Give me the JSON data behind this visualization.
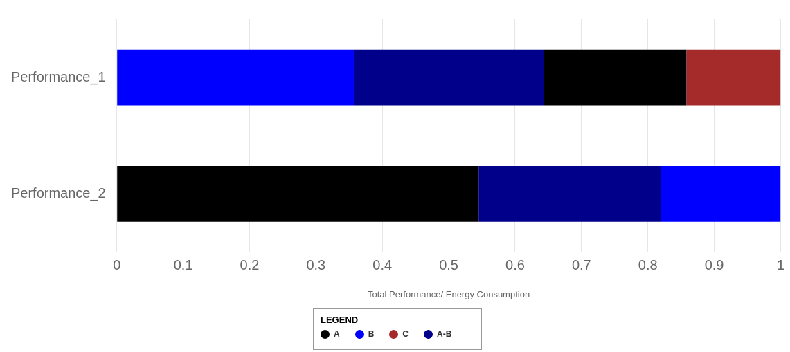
{
  "chart_data": {
    "type": "bar",
    "orientation": "horizontal",
    "stacked": true,
    "xlabel": "Total Performance/ Energy Consumption",
    "legend_title": "LEGEND",
    "legend": "bottom",
    "marker": "circle",
    "grid": "x",
    "categories": [
      "Performance_1",
      "Performance_2"
    ],
    "xlim": [
      0,
      1
    ],
    "xticks": [
      0,
      0.1,
      0.2,
      0.3,
      0.4,
      0.5,
      0.6,
      0.7,
      0.8,
      0.9,
      1
    ],
    "series": [
      {
        "name": "A",
        "color": "#000000",
        "values": [
          null,
          0.545
        ]
      },
      {
        "name": "B",
        "color": "#0000ff",
        "values": [
          0.357,
          null
        ]
      },
      {
        "color": "#00008b",
        "values": [
          0.286,
          null
        ]
      },
      {
        "color": "#000000",
        "values": [
          0.215,
          null
        ]
      },
      {
        "name": "C",
        "color": "#a52a2a",
        "values": [
          0.142,
          null
        ]
      },
      {
        "name": "A-B",
        "color": "#00008b",
        "values": [
          null,
          0.275
        ]
      },
      {
        "color": "#0000ff",
        "values": [
          null,
          0.18
        ]
      }
    ]
  }
}
